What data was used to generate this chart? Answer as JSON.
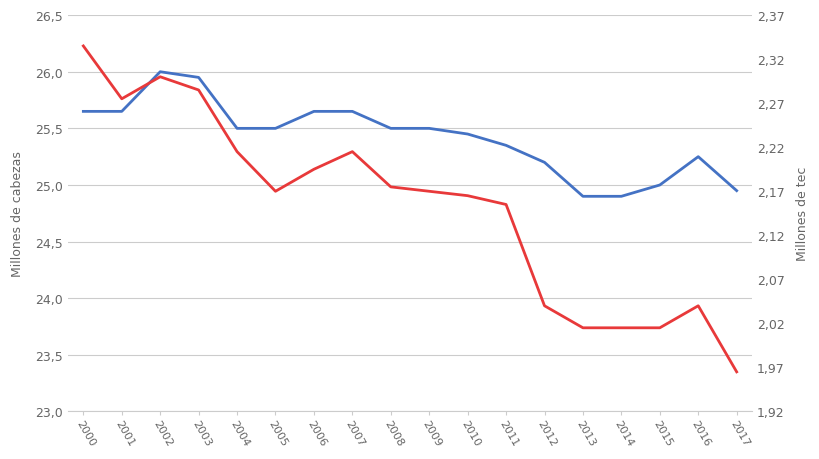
{
  "years": [
    2000,
    2001,
    2002,
    2003,
    2004,
    2005,
    2006,
    2007,
    2008,
    2009,
    2010,
    2011,
    2012,
    2013,
    2014,
    2015,
    2016,
    2017
  ],
  "blue_line": [
    25.65,
    25.65,
    26.0,
    25.95,
    25.5,
    25.5,
    25.65,
    25.65,
    25.5,
    25.5,
    25.45,
    25.35,
    25.2,
    24.9,
    24.9,
    25.0,
    25.25,
    24.95
  ],
  "red_line": [
    2.335,
    2.275,
    2.3,
    2.285,
    2.215,
    2.17,
    2.195,
    2.215,
    2.175,
    2.17,
    2.165,
    2.155,
    2.04,
    2.015,
    2.015,
    2.015,
    2.04,
    1.965
  ],
  "blue_color": "#4472C4",
  "red_color": "#E8393A",
  "left_ylabel": "Millones de cabezas",
  "right_ylabel": "Millones de tec",
  "left_ylim": [
    23.0,
    26.5
  ],
  "left_yticks": [
    23.0,
    23.5,
    24.0,
    24.5,
    25.0,
    25.5,
    26.0,
    26.5
  ],
  "right_ylim": [
    1.92,
    2.37
  ],
  "right_yticks": [
    1.92,
    1.97,
    2.02,
    2.07,
    2.12,
    2.17,
    2.22,
    2.27,
    2.32,
    2.37
  ],
  "background_color": "#ffffff",
  "grid_color": "#cccccc",
  "title": ""
}
